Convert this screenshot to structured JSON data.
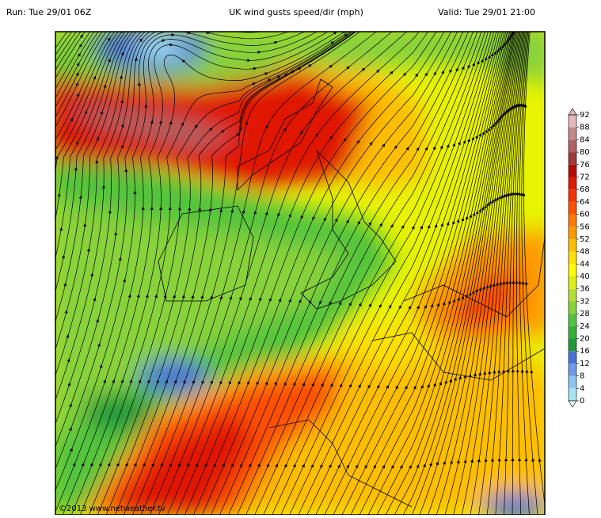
{
  "header": {
    "run": "Run: Tue 29/01 06Z",
    "title": "UK wind gusts speed/dir (mph)",
    "valid": "Valid: Tue 29/01 21:00"
  },
  "legend": {
    "ticks": [
      0,
      4,
      8,
      12,
      16,
      20,
      24,
      28,
      32,
      36,
      40,
      44,
      48,
      52,
      56,
      60,
      64,
      68,
      72,
      76,
      80,
      84,
      88,
      92
    ],
    "colors": [
      "#a6e4f2",
      "#8cc6f0",
      "#6e9ce8",
      "#4a72d6",
      "#1f9a3a",
      "#34b238",
      "#52c43e",
      "#88d23a",
      "#b4e030",
      "#dcee10",
      "#ffff00",
      "#ffe000",
      "#ffbe00",
      "#ff9a00",
      "#ff7800",
      "#ff5000",
      "#f63200",
      "#e01800",
      "#b80a00",
      "#a03a38",
      "#b06060",
      "#c48a8a",
      "#e2b8b8"
    ]
  },
  "footer": {
    "copyright": "©2013 www.netweather.tv"
  }
}
